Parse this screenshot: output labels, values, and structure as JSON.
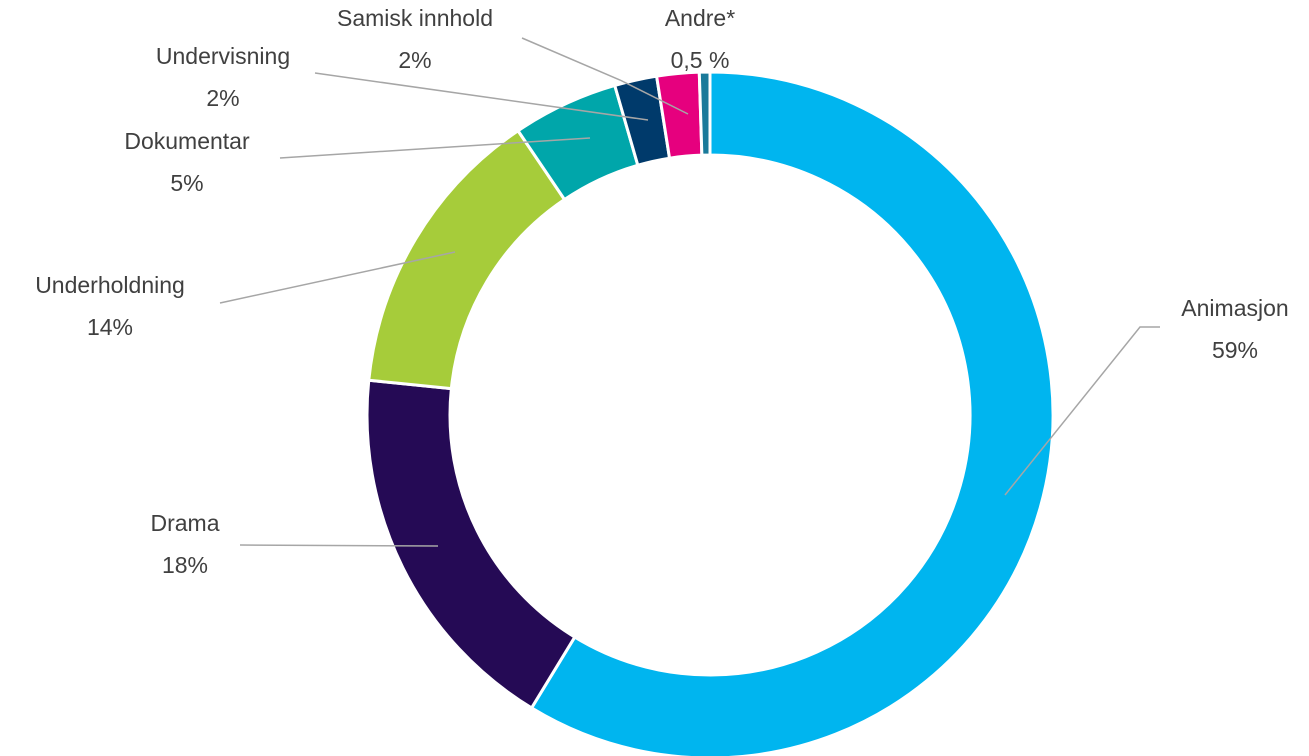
{
  "chart_data": {
    "type": "donut",
    "categories": [
      "Animasjon",
      "Drama",
      "Underholdning",
      "Dokumentar",
      "Undervisning",
      "Samisk innhold",
      "Andre*"
    ],
    "values": [
      59,
      18,
      14,
      5,
      2,
      2,
      0.5
    ],
    "value_labels": [
      "59%",
      "18%",
      "14%",
      "5%",
      "2%",
      "2%",
      "0,5 %"
    ],
    "colors": [
      "#00b5ef",
      "#250a55",
      "#a6cc3a",
      "#00a6aa",
      "#003a6b",
      "#e6007e",
      "#1a7a9a"
    ]
  }
}
